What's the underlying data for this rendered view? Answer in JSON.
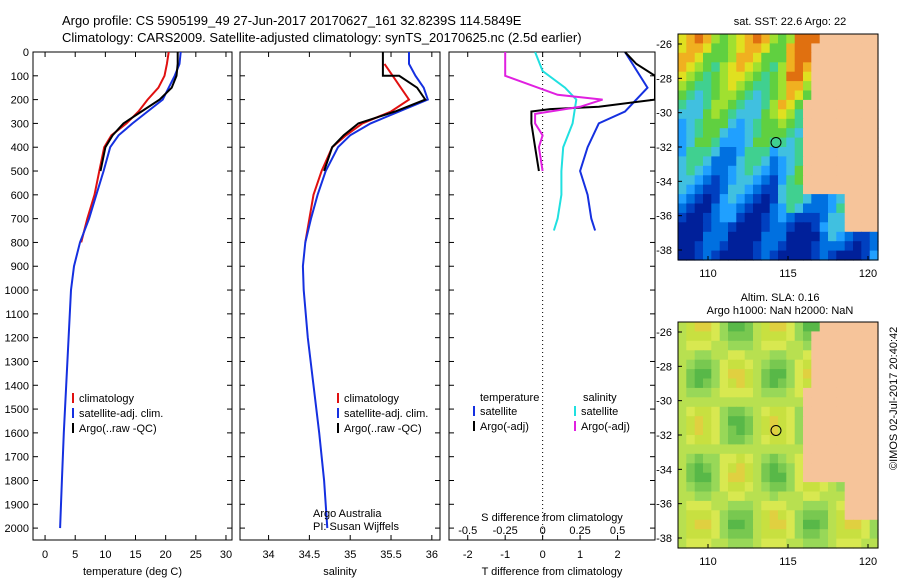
{
  "header": {
    "line1": "Argo profile: CS 5905199_49 27-Jun-2017 20170627_161 32.8239S 114.5849E",
    "line2": "Climatology: CARS2009. Satellite-adjusted climatology: synTS_20170625.nc (2.5d earlier)"
  },
  "colors": {
    "climatology": "#e01010",
    "satellite": "#1530e0",
    "argo": "#000000",
    "sal_satellite": "#20e0e0",
    "sal_argo": "#e020e0",
    "land": "#f6c49a"
  },
  "chart_data": [
    {
      "type": "line",
      "xlabel": "temperature (deg C)",
      "ylabel": "",
      "ylim": [
        0,
        2050
      ],
      "xlim": [
        -2,
        31
      ],
      "y_ticks": [
        0,
        100,
        200,
        300,
        400,
        500,
        600,
        700,
        800,
        900,
        1000,
        1100,
        1200,
        1300,
        1400,
        1500,
        1600,
        1700,
        1800,
        1900,
        2000
      ],
      "x_ticks": [
        0,
        5,
        10,
        15,
        20,
        25,
        30
      ],
      "legend": [
        "climatology",
        "satellite-adj. clim.",
        "Argo(..raw -QC)"
      ],
      "legend_position": "lower-center",
      "series": [
        {
          "name": "climatology",
          "color_key": "climatology",
          "points": [
            [
              20.5,
              0
            ],
            [
              20.2,
              50
            ],
            [
              19.8,
              100
            ],
            [
              18.8,
              150
            ],
            [
              17.0,
              200
            ],
            [
              15.5,
              250
            ],
            [
              13.5,
              300
            ],
            [
              11.0,
              350
            ],
            [
              9.8,
              400
            ],
            [
              9.0,
              500
            ],
            [
              8.2,
              600
            ],
            [
              7.0,
              700
            ],
            [
              6.0,
              800
            ]
          ]
        },
        {
          "name": "satellite-adj. clim.",
          "color_key": "satellite",
          "points": [
            [
              22.5,
              0
            ],
            [
              22.3,
              50
            ],
            [
              21.5,
              100
            ],
            [
              20.5,
              150
            ],
            [
              19.5,
              200
            ],
            [
              17.0,
              250
            ],
            [
              14.5,
              300
            ],
            [
              12.2,
              350
            ],
            [
              10.8,
              400
            ],
            [
              9.7,
              500
            ],
            [
              8.5,
              600
            ],
            [
              7.3,
              700
            ],
            [
              5.8,
              800
            ],
            [
              4.8,
              900
            ],
            [
              4.3,
              1000
            ],
            [
              3.9,
              1200
            ],
            [
              3.5,
              1400
            ],
            [
              3.1,
              1600
            ],
            [
              2.8,
              1800
            ],
            [
              2.5,
              2000
            ]
          ]
        },
        {
          "name": "Argo(..raw -QC)",
          "color_key": "argo",
          "points": [
            [
              22.0,
              0
            ],
            [
              22.0,
              50
            ],
            [
              21.8,
              100
            ],
            [
              21.0,
              150
            ],
            [
              19.0,
              200
            ],
            [
              16.0,
              250
            ],
            [
              13.0,
              300
            ],
            [
              11.2,
              350
            ],
            [
              10.0,
              400
            ],
            [
              9.2,
              500
            ]
          ]
        }
      ]
    },
    {
      "type": "line",
      "xlabel": "salinity",
      "ylim": [
        0,
        2050
      ],
      "xlim": [
        33.65,
        36.1
      ],
      "x_ticks": [
        34,
        34.5,
        35,
        35.5,
        36
      ],
      "x_tick_labels": [
        "34",
        "34.5",
        "35",
        "35.5",
        "36"
      ],
      "legend": [
        "climatology",
        "satellite-adj. clim.",
        "Argo(..raw -QC)"
      ],
      "annotation": [
        "Argo Australia",
        "PI: Susan Wijffels"
      ],
      "series": [
        {
          "name": "climatology",
          "color_key": "climatology",
          "points": [
            [
              35.42,
              50
            ],
            [
              35.52,
              100
            ],
            [
              35.62,
              150
            ],
            [
              35.72,
              200
            ],
            [
              35.5,
              250
            ],
            [
              35.15,
              300
            ],
            [
              34.95,
              350
            ],
            [
              34.78,
              400
            ],
            [
              34.65,
              500
            ],
            [
              34.55,
              600
            ],
            [
              34.5,
              700
            ],
            [
              34.45,
              800
            ]
          ]
        },
        {
          "name": "satellite-adj. clim.",
          "color_key": "satellite",
          "points": [
            [
              35.72,
              0
            ],
            [
              35.72,
              50
            ],
            [
              35.8,
              100
            ],
            [
              35.9,
              150
            ],
            [
              35.95,
              200
            ],
            [
              35.6,
              250
            ],
            [
              35.25,
              300
            ],
            [
              35.0,
              350
            ],
            [
              34.85,
              400
            ],
            [
              34.7,
              500
            ],
            [
              34.6,
              600
            ],
            [
              34.52,
              700
            ],
            [
              34.45,
              800
            ],
            [
              34.42,
              900
            ],
            [
              34.43,
              1000
            ],
            [
              34.48,
              1200
            ],
            [
              34.55,
              1400
            ],
            [
              34.62,
              1600
            ],
            [
              34.68,
              1800
            ],
            [
              34.72,
              2000
            ]
          ]
        },
        {
          "name": "Argo(..raw -QC)",
          "color_key": "argo",
          "points": [
            [
              35.4,
              0
            ],
            [
              35.4,
              100
            ],
            [
              35.6,
              100
            ],
            [
              35.82,
              150
            ],
            [
              35.92,
              200
            ],
            [
              35.55,
              250
            ],
            [
              35.1,
              300
            ],
            [
              34.92,
              350
            ],
            [
              34.78,
              400
            ],
            [
              34.68,
              500
            ]
          ]
        }
      ]
    },
    {
      "type": "line",
      "xlabel": "T difference from climatology",
      "top_axis_label": "S difference from climatology",
      "ylim": [
        0,
        2050
      ],
      "xlim": [
        -2.5,
        3
      ],
      "x_ticks": [
        -2,
        -1,
        0,
        1,
        2
      ],
      "s_ticks": [
        "-0.5",
        "-0.25",
        "0",
        "0.25",
        "0.5"
      ],
      "legend_titles": [
        "temperature",
        "salinity"
      ],
      "legend": [
        "satellite",
        "Argo(-adj)",
        "satellite",
        "Argo(-adj)"
      ],
      "series": [
        {
          "name": "T satellite",
          "color_key": "satellite",
          "points": [
            [
              2.2,
              0
            ],
            [
              2.4,
              50
            ],
            [
              2.8,
              150
            ],
            [
              2.2,
              250
            ],
            [
              1.5,
              300
            ],
            [
              1.2,
              400
            ],
            [
              1.0,
              500
            ],
            [
              1.2,
              600
            ],
            [
              1.3,
              700
            ],
            [
              1.4,
              750
            ]
          ]
        },
        {
          "name": "T Argo(-adj)",
          "color_key": "argo",
          "points": [
            [
              2.2,
              0
            ],
            [
              2.5,
              50
            ],
            [
              3.0,
              100
            ],
            [
              3.0,
              200
            ],
            [
              1.5,
              230
            ],
            [
              0.2,
              240
            ],
            [
              -0.3,
              250
            ],
            [
              -0.3,
              300
            ],
            [
              -0.2,
              400
            ],
            [
              -0.1,
              500
            ]
          ]
        },
        {
          "name": "S satellite",
          "color_key": "sal_satellite",
          "points": [
            [
              -0.2,
              0
            ],
            [
              0.0,
              80
            ],
            [
              0.6,
              150
            ],
            [
              0.9,
              200
            ],
            [
              0.8,
              300
            ],
            [
              0.55,
              400
            ],
            [
              0.5,
              500
            ],
            [
              0.5,
              600
            ],
            [
              0.4,
              700
            ],
            [
              0.3,
              750
            ]
          ]
        },
        {
          "name": "S Argo(-adj)",
          "color_key": "sal_argo",
          "points": [
            [
              -1.0,
              0
            ],
            [
              -1.0,
              100
            ],
            [
              0.4,
              180
            ],
            [
              1.6,
              200
            ],
            [
              1.0,
              230
            ],
            [
              -0.2,
              260
            ],
            [
              -0.2,
              300
            ],
            [
              0.0,
              350
            ],
            [
              -0.1,
              400
            ],
            [
              0.0,
              500
            ]
          ]
        }
      ]
    }
  ],
  "maps": [
    {
      "title": "sat. SST: 22.6 Argo: 22",
      "x_ticks": [
        "110",
        "115",
        "120"
      ],
      "y_ticks": [
        "-26",
        "-28",
        "-30",
        "-32",
        "-34",
        "-36",
        "-38"
      ]
    },
    {
      "title_line1": "Altim. SLA: 0.16",
      "title_line2": "Argo h1000: NaN h2000: NaN",
      "x_ticks": [
        "110",
        "115",
        "120"
      ],
      "y_ticks": [
        "-26",
        "-28",
        "-30",
        "-32",
        "-34",
        "-36",
        "-38"
      ]
    }
  ],
  "credit": "©IMOS 02-Jul-2017 20:40:42"
}
